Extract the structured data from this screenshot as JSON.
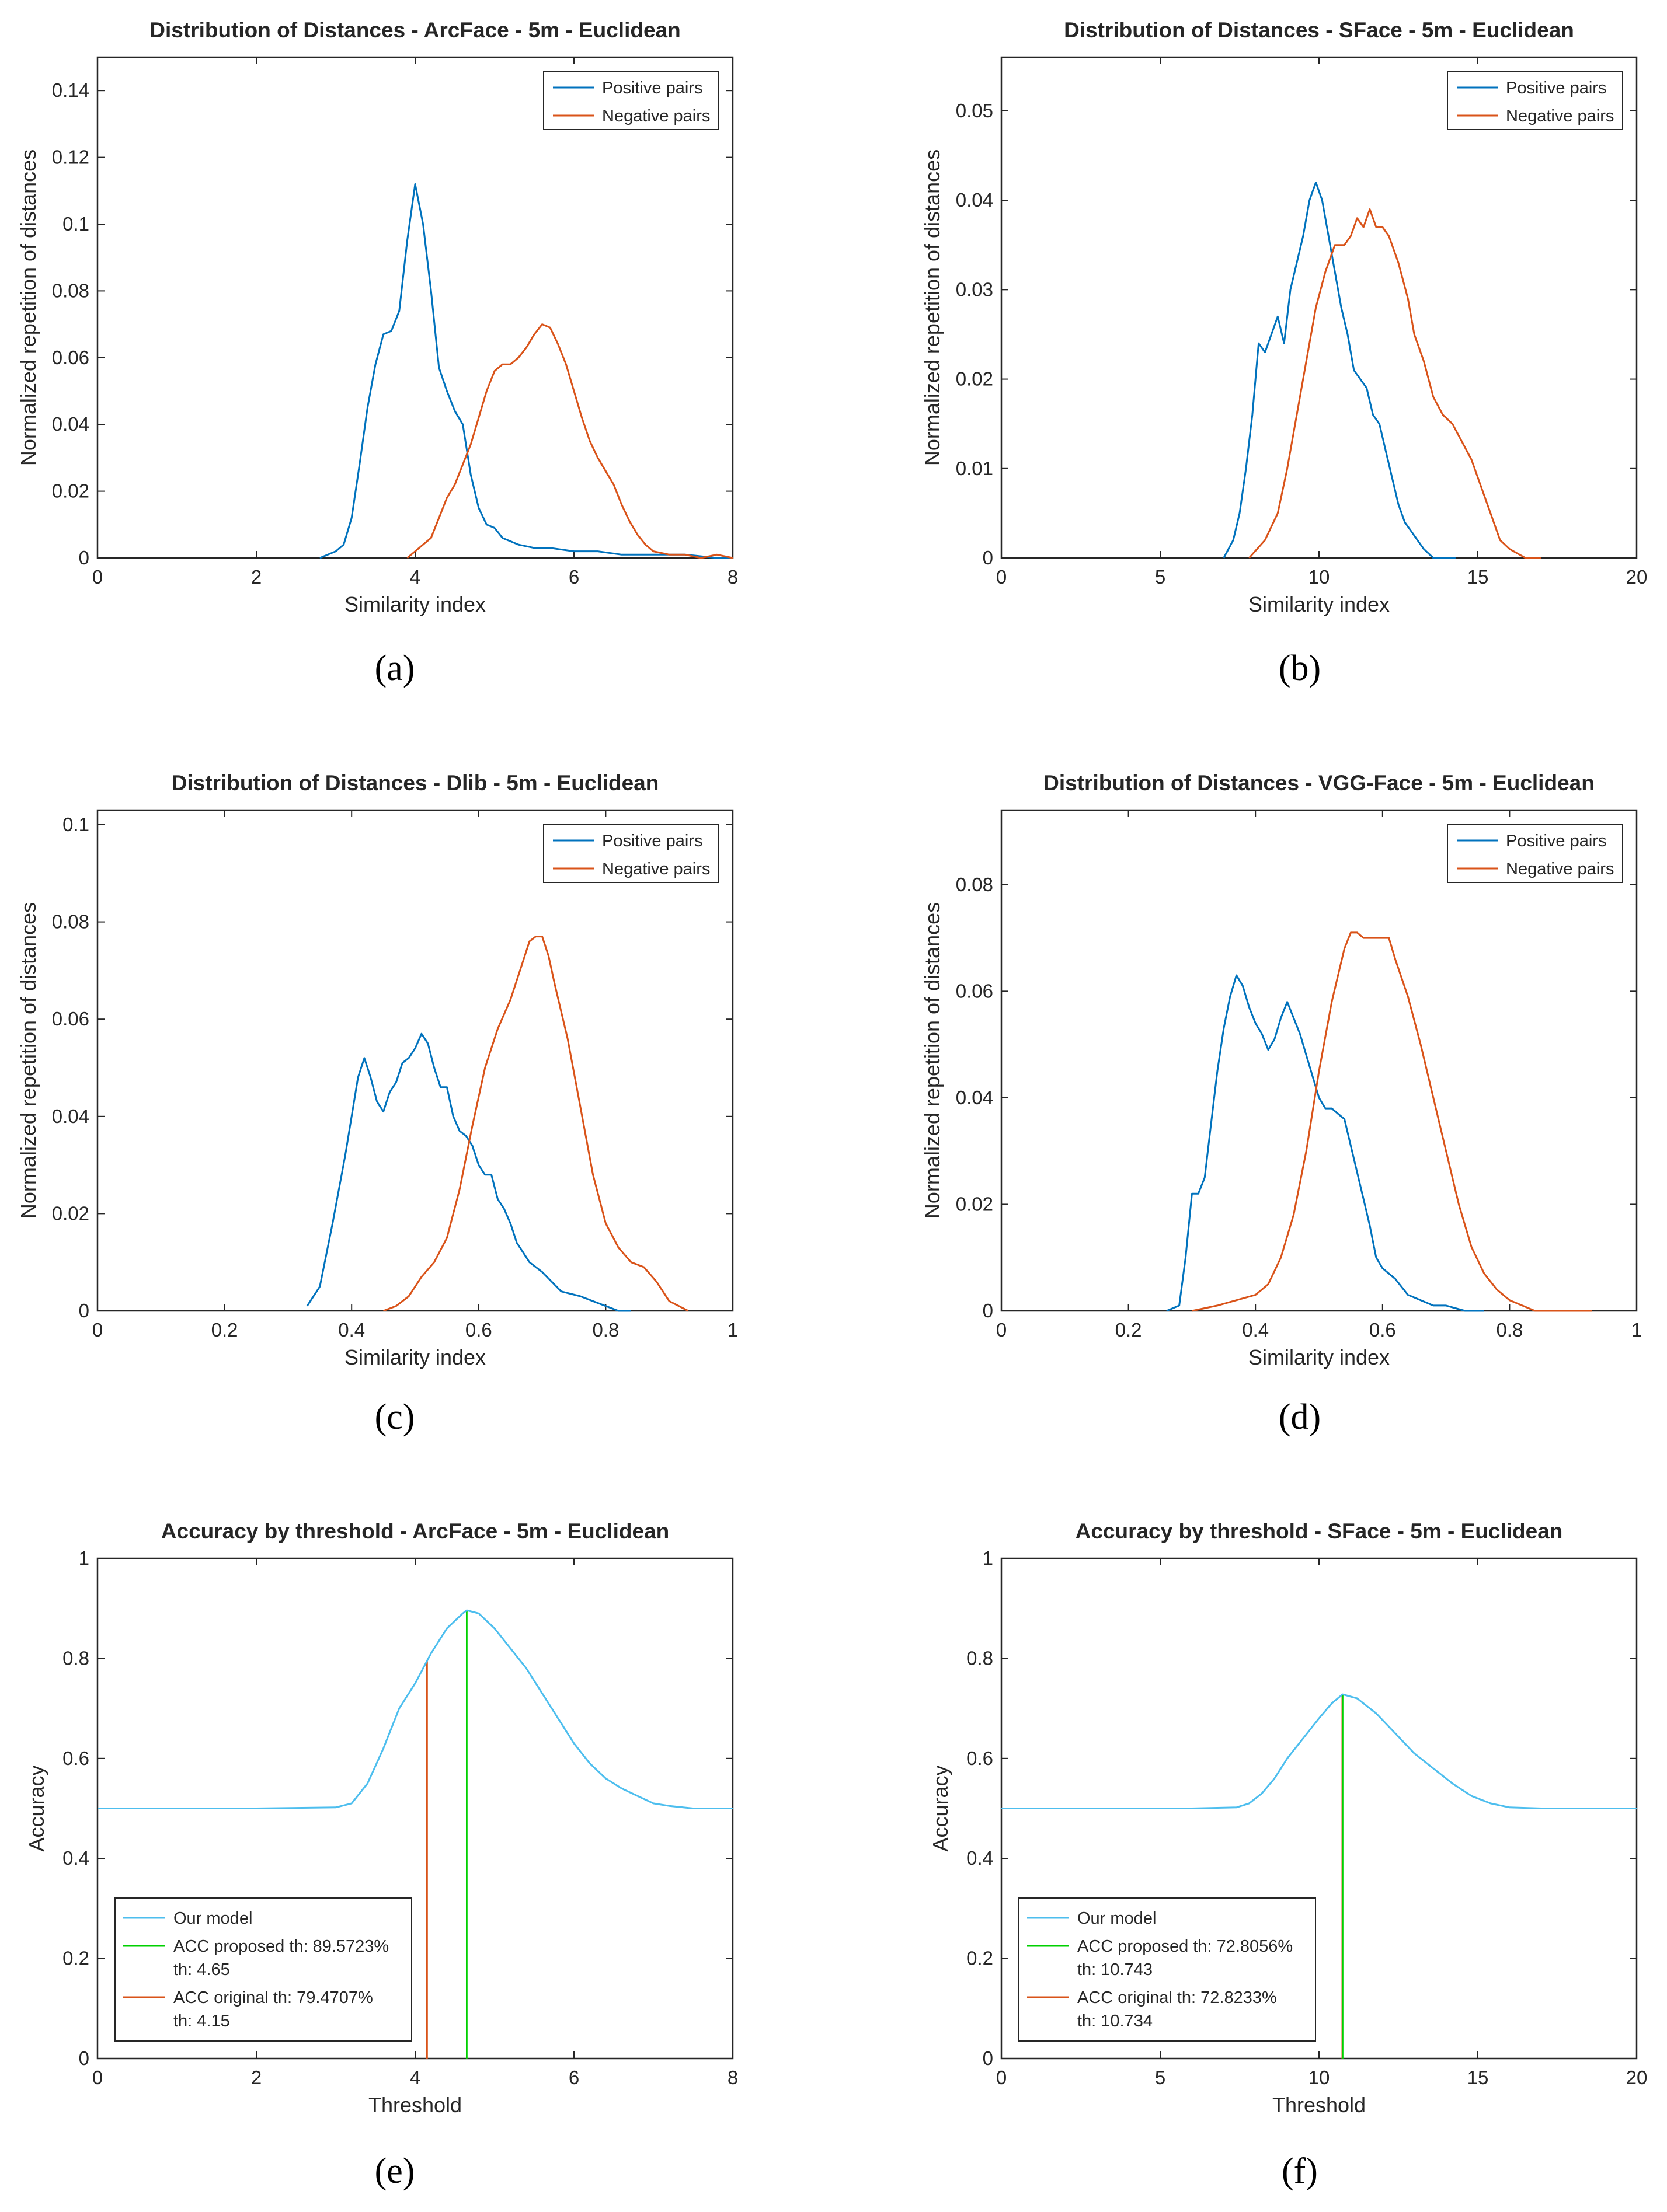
{
  "chart_data": [
    {
      "type": "line",
      "id": "a",
      "caption_letter": "a",
      "title": "Distribution of Distances - ArcFace - 5m - Euclidean",
      "xlabel": "Similarity index",
      "ylabel": "Normalized repetition of distances",
      "xlim": [
        0,
        8
      ],
      "ylim": [
        0,
        0.15
      ],
      "xticks": [
        0,
        2,
        4,
        6,
        8
      ],
      "xtick_labels": [
        "0",
        "2",
        "4",
        "6",
        "8"
      ],
      "yticks": [
        0,
        0.02,
        0.04,
        0.06,
        0.08,
        0.1,
        0.12,
        0.14
      ],
      "ytick_labels": [
        "0",
        "0.02",
        "0.04",
        "0.06",
        "0.08",
        "0.1",
        "0.12",
        "0.14"
      ],
      "legend_position": "top-right",
      "series": [
        {
          "name": "Positive pairs",
          "color": "#0072BD",
          "x": [
            2.8,
            3.0,
            3.1,
            3.2,
            3.3,
            3.4,
            3.5,
            3.6,
            3.7,
            3.8,
            3.9,
            4.0,
            4.1,
            4.2,
            4.3,
            4.4,
            4.5,
            4.6,
            4.7,
            4.8,
            4.9,
            5.0,
            5.1,
            5.2,
            5.3,
            5.5,
            5.7,
            6.0,
            6.3,
            6.6,
            7.0,
            7.4,
            7.8,
            8.0
          ],
          "y": [
            0.0,
            0.002,
            0.004,
            0.012,
            0.028,
            0.045,
            0.058,
            0.067,
            0.068,
            0.074,
            0.095,
            0.112,
            0.1,
            0.08,
            0.057,
            0.05,
            0.044,
            0.04,
            0.025,
            0.015,
            0.01,
            0.009,
            0.006,
            0.005,
            0.004,
            0.003,
            0.003,
            0.002,
            0.002,
            0.001,
            0.001,
            0.001,
            0.0,
            0.0
          ]
        },
        {
          "name": "Negative pairs",
          "color": "#D95319",
          "x": [
            3.9,
            4.0,
            4.1,
            4.2,
            4.3,
            4.4,
            4.5,
            4.6,
            4.7,
            4.8,
            4.9,
            5.0,
            5.1,
            5.2,
            5.3,
            5.4,
            5.5,
            5.6,
            5.7,
            5.8,
            5.9,
            6.0,
            6.1,
            6.2,
            6.3,
            6.4,
            6.5,
            6.6,
            6.7,
            6.8,
            6.9,
            7.0,
            7.2,
            7.4,
            7.6,
            7.8,
            8.0
          ],
          "y": [
            0.0,
            0.002,
            0.004,
            0.006,
            0.012,
            0.018,
            0.022,
            0.028,
            0.034,
            0.042,
            0.05,
            0.056,
            0.058,
            0.058,
            0.06,
            0.063,
            0.067,
            0.07,
            0.069,
            0.064,
            0.058,
            0.05,
            0.042,
            0.035,
            0.03,
            0.026,
            0.022,
            0.016,
            0.011,
            0.007,
            0.004,
            0.002,
            0.001,
            0.001,
            0.0,
            0.001,
            0.0
          ]
        }
      ]
    },
    {
      "type": "line",
      "id": "b",
      "caption_letter": "b",
      "title": "Distribution of Distances - SFace - 5m - Euclidean",
      "xlabel": "Similarity index",
      "ylabel": "Normalized repetition of distances",
      "xlim": [
        0,
        20
      ],
      "ylim": [
        0,
        0.056
      ],
      "xticks": [
        0,
        5,
        10,
        15,
        20
      ],
      "xtick_labels": [
        "0",
        "5",
        "10",
        "15",
        "20"
      ],
      "yticks": [
        0,
        0.01,
        0.02,
        0.03,
        0.04,
        0.05
      ],
      "ytick_labels": [
        "0",
        "0.01",
        "0.02",
        "0.03",
        "0.04",
        "0.05"
      ],
      "legend_position": "top-right",
      "series": [
        {
          "name": "Positive pairs",
          "color": "#0072BD",
          "x": [
            7.0,
            7.3,
            7.5,
            7.7,
            7.9,
            8.1,
            8.3,
            8.5,
            8.7,
            8.9,
            9.1,
            9.3,
            9.5,
            9.7,
            9.9,
            10.1,
            10.3,
            10.5,
            10.7,
            10.9,
            11.1,
            11.3,
            11.5,
            11.7,
            11.9,
            12.1,
            12.3,
            12.5,
            12.7,
            12.9,
            13.1,
            13.3,
            13.6,
            14.0,
            14.3
          ],
          "y": [
            0.0,
            0.002,
            0.005,
            0.01,
            0.016,
            0.024,
            0.023,
            0.025,
            0.027,
            0.024,
            0.03,
            0.033,
            0.036,
            0.04,
            0.042,
            0.04,
            0.036,
            0.032,
            0.028,
            0.025,
            0.021,
            0.02,
            0.019,
            0.016,
            0.015,
            0.012,
            0.009,
            0.006,
            0.004,
            0.003,
            0.002,
            0.001,
            0.0,
            0.0,
            0.0
          ]
        },
        {
          "name": "Negative pairs",
          "color": "#D95319",
          "x": [
            7.8,
            8.3,
            8.7,
            9.0,
            9.3,
            9.6,
            9.9,
            10.2,
            10.5,
            10.8,
            11.0,
            11.2,
            11.4,
            11.6,
            11.8,
            12.0,
            12.2,
            12.5,
            12.8,
            13.0,
            13.3,
            13.6,
            13.9,
            14.2,
            14.5,
            14.8,
            15.1,
            15.4,
            15.7,
            16.0,
            16.5,
            17.0
          ],
          "y": [
            0.0,
            0.002,
            0.005,
            0.01,
            0.016,
            0.022,
            0.028,
            0.032,
            0.035,
            0.035,
            0.036,
            0.038,
            0.037,
            0.039,
            0.037,
            0.037,
            0.036,
            0.033,
            0.029,
            0.025,
            0.022,
            0.018,
            0.016,
            0.015,
            0.013,
            0.011,
            0.008,
            0.005,
            0.002,
            0.001,
            0.0,
            0.0
          ]
        }
      ]
    },
    {
      "type": "line",
      "id": "c",
      "caption_letter": "c",
      "title": "Distribution of Distances - Dlib - 5m - Euclidean",
      "xlabel": "Similarity index",
      "ylabel": "Normalized repetition of distances",
      "xlim": [
        0,
        1
      ],
      "ylim": [
        0,
        0.103
      ],
      "xticks": [
        0,
        0.2,
        0.4,
        0.6,
        0.8,
        1
      ],
      "xtick_labels": [
        "0",
        "0.2",
        "0.4",
        "0.6",
        "0.8",
        "1"
      ],
      "yticks": [
        0,
        0.02,
        0.04,
        0.06,
        0.08,
        0.1
      ],
      "ytick_labels": [
        "0",
        "0.02",
        "0.04",
        "0.06",
        "0.08",
        "0.1"
      ],
      "legend_position": "top-right",
      "series": [
        {
          "name": "Positive pairs",
          "color": "#0072BD",
          "x": [
            0.33,
            0.35,
            0.37,
            0.39,
            0.41,
            0.42,
            0.43,
            0.44,
            0.45,
            0.46,
            0.47,
            0.48,
            0.49,
            0.5,
            0.51,
            0.52,
            0.53,
            0.54,
            0.55,
            0.56,
            0.57,
            0.58,
            0.59,
            0.6,
            0.61,
            0.62,
            0.63,
            0.64,
            0.65,
            0.66,
            0.67,
            0.68,
            0.7,
            0.73,
            0.76,
            0.8,
            0.82,
            0.84
          ],
          "y": [
            0.001,
            0.005,
            0.018,
            0.032,
            0.048,
            0.052,
            0.048,
            0.043,
            0.041,
            0.045,
            0.047,
            0.051,
            0.052,
            0.054,
            0.057,
            0.055,
            0.05,
            0.046,
            0.046,
            0.04,
            0.037,
            0.036,
            0.034,
            0.03,
            0.028,
            0.028,
            0.023,
            0.021,
            0.018,
            0.014,
            0.012,
            0.01,
            0.008,
            0.004,
            0.003,
            0.001,
            0.0,
            0.0
          ]
        },
        {
          "name": "Negative pairs",
          "color": "#D95319",
          "x": [
            0.45,
            0.47,
            0.49,
            0.51,
            0.53,
            0.55,
            0.57,
            0.59,
            0.61,
            0.63,
            0.65,
            0.67,
            0.68,
            0.69,
            0.7,
            0.71,
            0.72,
            0.74,
            0.76,
            0.78,
            0.8,
            0.82,
            0.84,
            0.86,
            0.88,
            0.9,
            0.93
          ],
          "y": [
            0.0,
            0.001,
            0.003,
            0.007,
            0.01,
            0.015,
            0.025,
            0.038,
            0.05,
            0.058,
            0.064,
            0.072,
            0.076,
            0.077,
            0.077,
            0.073,
            0.067,
            0.056,
            0.042,
            0.028,
            0.018,
            0.013,
            0.01,
            0.009,
            0.006,
            0.002,
            0.0
          ]
        }
      ]
    },
    {
      "type": "line",
      "id": "d",
      "caption_letter": "d",
      "title": "Distribution of Distances - VGG-Face - 5m - Euclidean",
      "xlabel": "Similarity index",
      "ylabel": "Normalized repetition of distances",
      "xlim": [
        0,
        1
      ],
      "ylim": [
        0,
        0.094
      ],
      "xticks": [
        0,
        0.2,
        0.4,
        0.6,
        0.8,
        1
      ],
      "xtick_labels": [
        "0",
        "0.2",
        "0.4",
        "0.6",
        "0.8",
        "1"
      ],
      "yticks": [
        0,
        0.02,
        0.04,
        0.06,
        0.08
      ],
      "ytick_labels": [
        "0",
        "0.02",
        "0.04",
        "0.06",
        "0.08"
      ],
      "legend_position": "top-right",
      "series": [
        {
          "name": "Positive pairs",
          "color": "#0072BD",
          "x": [
            0.26,
            0.28,
            0.29,
            0.3,
            0.31,
            0.32,
            0.33,
            0.34,
            0.35,
            0.36,
            0.37,
            0.38,
            0.39,
            0.4,
            0.41,
            0.42,
            0.43,
            0.44,
            0.45,
            0.46,
            0.47,
            0.48,
            0.49,
            0.5,
            0.51,
            0.52,
            0.53,
            0.54,
            0.55,
            0.56,
            0.57,
            0.58,
            0.59,
            0.6,
            0.62,
            0.64,
            0.66,
            0.68,
            0.7,
            0.73,
            0.76
          ],
          "y": [
            0.0,
            0.001,
            0.01,
            0.022,
            0.022,
            0.025,
            0.035,
            0.045,
            0.053,
            0.059,
            0.063,
            0.061,
            0.057,
            0.054,
            0.052,
            0.049,
            0.051,
            0.055,
            0.058,
            0.055,
            0.052,
            0.048,
            0.044,
            0.04,
            0.038,
            0.038,
            0.037,
            0.036,
            0.031,
            0.026,
            0.021,
            0.016,
            0.01,
            0.008,
            0.006,
            0.003,
            0.002,
            0.001,
            0.001,
            0.0,
            0.0
          ]
        },
        {
          "name": "Negative pairs",
          "color": "#D95319",
          "x": [
            0.3,
            0.34,
            0.37,
            0.4,
            0.42,
            0.44,
            0.46,
            0.48,
            0.5,
            0.52,
            0.54,
            0.55,
            0.56,
            0.57,
            0.58,
            0.6,
            0.61,
            0.62,
            0.64,
            0.66,
            0.68,
            0.7,
            0.72,
            0.74,
            0.76,
            0.78,
            0.8,
            0.82,
            0.84,
            0.86,
            0.88,
            0.9,
            0.93
          ],
          "y": [
            0.0,
            0.001,
            0.002,
            0.003,
            0.005,
            0.01,
            0.018,
            0.03,
            0.045,
            0.058,
            0.068,
            0.071,
            0.071,
            0.07,
            0.07,
            0.07,
            0.07,
            0.066,
            0.059,
            0.05,
            0.04,
            0.03,
            0.02,
            0.012,
            0.007,
            0.004,
            0.002,
            0.001,
            0.0,
            0.0,
            0.0,
            0.0,
            0.0
          ]
        }
      ]
    },
    {
      "type": "line",
      "id": "e",
      "caption_letter": "e",
      "title": "Accuracy by threshold - ArcFace - 5m - Euclidean",
      "xlabel": "Threshold",
      "ylabel": "Accuracy",
      "xlim": [
        0,
        8
      ],
      "ylim": [
        0,
        1
      ],
      "xticks": [
        0,
        2,
        4,
        6,
        8
      ],
      "xtick_labels": [
        "0",
        "2",
        "4",
        "6",
        "8"
      ],
      "yticks": [
        0,
        0.2,
        0.4,
        0.6,
        0.8,
        1
      ],
      "ytick_labels": [
        "0",
        "0.2",
        "0.4",
        "0.6",
        "0.8",
        "1"
      ],
      "legend_position": "bottom-left",
      "series": [
        {
          "name": "Our model",
          "color": "#4DBEEE",
          "x": [
            0,
            1,
            2,
            3,
            3.2,
            3.4,
            3.6,
            3.8,
            4.0,
            4.2,
            4.4,
            4.6,
            4.65,
            4.8,
            5.0,
            5.2,
            5.4,
            5.6,
            5.8,
            6.0,
            6.2,
            6.4,
            6.6,
            6.8,
            7.0,
            7.2,
            7.5,
            8.0
          ],
          "y": [
            0.5,
            0.5,
            0.5,
            0.502,
            0.51,
            0.55,
            0.62,
            0.7,
            0.75,
            0.81,
            0.86,
            0.89,
            0.896,
            0.89,
            0.86,
            0.82,
            0.78,
            0.73,
            0.68,
            0.63,
            0.59,
            0.56,
            0.54,
            0.525,
            0.51,
            0.505,
            0.5,
            0.5
          ]
        }
      ],
      "vlines": [
        {
          "name": "ACC proposed th",
          "x": 4.65,
          "y": 0.896,
          "color": "#00D000"
        },
        {
          "name": "ACC original th",
          "x": 4.15,
          "y": 0.795,
          "color": "#D95319"
        }
      ],
      "legend": {
        "model_label": "Our model",
        "proposed_label": "ACC proposed th: 89.5723%",
        "proposed_th": "th: 4.65",
        "original_label": "ACC original th: 79.4707%",
        "original_th": "th: 4.15"
      }
    },
    {
      "type": "line",
      "id": "f",
      "caption_letter": "f",
      "title": "Accuracy by threshold - SFace - 5m - Euclidean",
      "xlabel": "Threshold",
      "ylabel": "Accuracy",
      "xlim": [
        0,
        20
      ],
      "ylim": [
        0,
        1
      ],
      "xticks": [
        0,
        5,
        10,
        15,
        20
      ],
      "xtick_labels": [
        "0",
        "5",
        "10",
        "15",
        "20"
      ],
      "yticks": [
        0,
        0.2,
        0.4,
        0.6,
        0.8,
        1
      ],
      "ytick_labels": [
        "0",
        "0.2",
        "0.4",
        "0.6",
        "0.8",
        "1"
      ],
      "legend_position": "bottom-left",
      "series": [
        {
          "name": "Our model",
          "color": "#4DBEEE",
          "x": [
            0,
            3,
            6,
            7.4,
            7.8,
            8.2,
            8.6,
            9.0,
            9.5,
            10.0,
            10.4,
            10.74,
            11.2,
            11.8,
            12.4,
            13.0,
            13.6,
            14.2,
            14.8,
            15.4,
            16.0,
            17.0,
            18.0,
            20.0
          ],
          "y": [
            0.5,
            0.5,
            0.5,
            0.502,
            0.51,
            0.53,
            0.56,
            0.6,
            0.64,
            0.68,
            0.71,
            0.728,
            0.72,
            0.69,
            0.65,
            0.61,
            0.58,
            0.55,
            0.525,
            0.51,
            0.502,
            0.5,
            0.5,
            0.5
          ]
        }
      ],
      "vlines": [
        {
          "name": "ACC proposed th",
          "x": 10.743,
          "y": 0.728,
          "color": "#00D000"
        },
        {
          "name": "ACC original th",
          "x": 10.734,
          "y": 0.728,
          "color": "#D95319"
        }
      ],
      "legend": {
        "model_label": "Our model",
        "proposed_label": "ACC proposed th: 72.8056%",
        "proposed_th": "th: 10.743",
        "original_label": "ACC original th: 72.8233%",
        "original_th": "th: 10.734"
      }
    }
  ]
}
